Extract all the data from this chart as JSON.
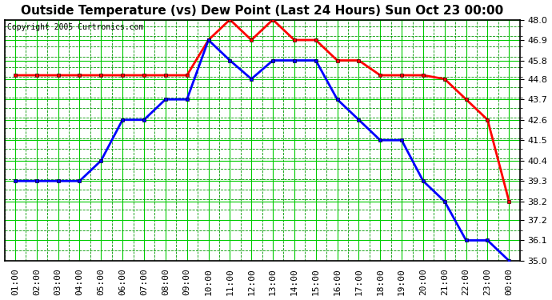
{
  "title": "Outside Temperature (vs) Dew Point (Last 24 Hours) Sun Oct 23 00:00",
  "copyright": "Copyright 2005 Curtronics.com",
  "x_labels": [
    "01:00",
    "02:00",
    "03:00",
    "04:00",
    "05:00",
    "06:00",
    "07:00",
    "08:00",
    "09:00",
    "10:00",
    "11:00",
    "12:00",
    "13:00",
    "14:00",
    "15:00",
    "16:00",
    "17:00",
    "18:00",
    "19:00",
    "20:00",
    "21:00",
    "22:00",
    "23:00",
    "00:00"
  ],
  "temp_data": [
    39.3,
    39.3,
    39.3,
    39.3,
    40.4,
    42.6,
    42.6,
    43.7,
    43.7,
    46.9,
    45.8,
    44.8,
    45.8,
    45.8,
    45.8,
    43.7,
    42.6,
    41.5,
    41.5,
    39.3,
    38.2,
    36.1,
    36.1,
    35.0
  ],
  "dew_data": [
    45.0,
    45.0,
    45.0,
    45.0,
    45.0,
    45.0,
    45.0,
    45.0,
    45.0,
    46.9,
    48.0,
    46.9,
    48.0,
    46.9,
    46.9,
    45.8,
    45.8,
    45.0,
    45.0,
    45.0,
    44.8,
    43.7,
    42.6,
    38.2
  ],
  "ylim": [
    35.0,
    48.0
  ],
  "yticks": [
    35.0,
    36.1,
    37.2,
    38.2,
    39.3,
    40.4,
    41.5,
    42.6,
    43.7,
    44.8,
    45.8,
    46.9,
    48.0
  ],
  "temp_color": "#0000ff",
  "dew_color": "#ff0000",
  "bg_color": "#ffffff",
  "plot_bg": "#ffffff",
  "grid_major_color": "#00cc00",
  "grid_minor_color": "#009900",
  "title_fontsize": 11,
  "tick_fontsize": 8,
  "copyright_fontsize": 7
}
